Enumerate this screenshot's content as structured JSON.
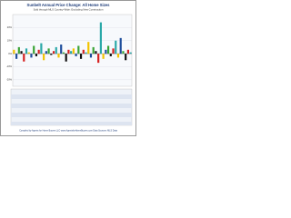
{
  "chart_data": {
    "type": "bar",
    "title": "Sunbelt Annual Price Change: All Home Sizes",
    "subtitle": "Sold through MLS Country-Wide: Excluding New Construction",
    "footer": "Compiled by Agents for Home Buyers LLC  www.AgentsforHomeBuyers.com  Data Sources: MLS Data",
    "categories": [
      null,
      null,
      null,
      null,
      null,
      null,
      null,
      null,
      null,
      null,
      null,
      null,
      null,
      null,
      null,
      null,
      null,
      null,
      null,
      null,
      null,
      null,
      null,
      null,
      null,
      null,
      null,
      null,
      null,
      null,
      null,
      null,
      null,
      null,
      null,
      null,
      null,
      null,
      null,
      null,
      null,
      null,
      null,
      null,
      null,
      null,
      null,
      null
    ],
    "values": [
      3,
      -4,
      5,
      2,
      -6,
      4,
      1,
      -3,
      6,
      -2,
      3,
      8,
      -5,
      2,
      4,
      -1,
      2,
      5,
      -3,
      7,
      1,
      -6,
      3,
      2,
      4,
      -2,
      6,
      -4,
      3,
      1,
      9,
      -3,
      5,
      2,
      -7,
      24,
      -4,
      3,
      6,
      -2,
      4,
      10,
      -3,
      12,
      2,
      -5,
      3,
      1
    ],
    "colors": [
      "#f2c400",
      "#1f4e9c",
      "#3aa335",
      "#111111",
      "#d62020",
      "#2aa8a8"
    ],
    "ylim": [
      -25,
      30
    ],
    "yticks": [
      {
        "value": -20,
        "label": "-20%"
      },
      {
        "value": -10,
        "label": "-10%"
      },
      {
        "value": 0,
        "label": "0%"
      },
      {
        "value": 10,
        "label": "10%"
      },
      {
        "value": 20,
        "label": "20%"
      }
    ],
    "grid": true
  }
}
